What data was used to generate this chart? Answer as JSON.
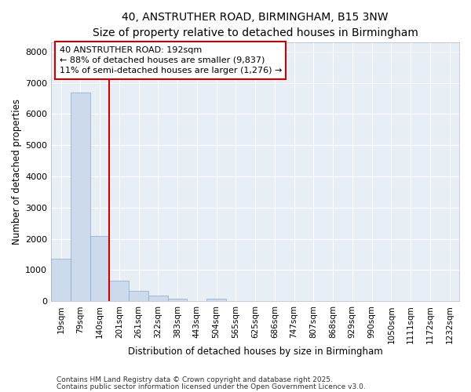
{
  "title_line1": "40, ANSTRUTHER ROAD, BIRMINGHAM, B15 3NW",
  "title_line2": "Size of property relative to detached houses in Birmingham",
  "xlabel": "Distribution of detached houses by size in Birmingham",
  "ylabel": "Number of detached properties",
  "bar_color": "#ccdaec",
  "bar_edge_color": "#8aaac8",
  "background_color": "#e8eef6",
  "grid_color": "white",
  "vline_color": "#cc0000",
  "annotation_text": "40 ANSTRUTHER ROAD: 192sqm\n← 88% of detached houses are smaller (9,837)\n11% of semi-detached houses are larger (1,276) →",
  "annotation_box_color": "#cc0000",
  "categories": [
    "19sqm",
    "79sqm",
    "140sqm",
    "201sqm",
    "261sqm",
    "322sqm",
    "383sqm",
    "443sqm",
    "504sqm",
    "565sqm",
    "625sqm",
    "686sqm",
    "747sqm",
    "807sqm",
    "868sqm",
    "929sqm",
    "990sqm",
    "1050sqm",
    "1111sqm",
    "1172sqm",
    "1232sqm"
  ],
  "values": [
    1350,
    6700,
    2100,
    650,
    320,
    170,
    90,
    0,
    70,
    0,
    0,
    0,
    0,
    0,
    0,
    0,
    0,
    0,
    0,
    0,
    0
  ],
  "ylim": [
    0,
    8300
  ],
  "yticks": [
    0,
    1000,
    2000,
    3000,
    4000,
    5000,
    6000,
    7000,
    8000
  ],
  "footnote_line1": "Contains HM Land Registry data © Crown copyright and database right 2025.",
  "footnote_line2": "Contains public sector information licensed under the Open Government Licence v3.0."
}
